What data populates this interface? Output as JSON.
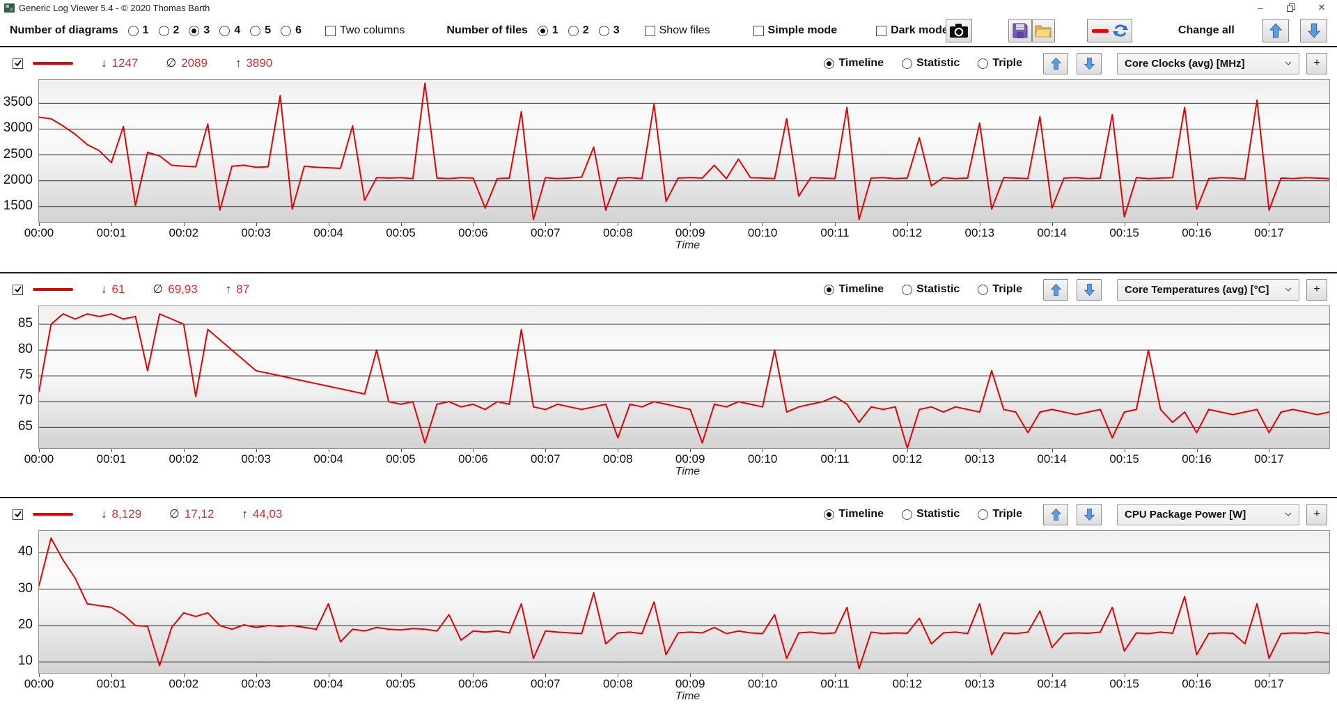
{
  "window": {
    "title": "Generic Log Viewer 5.4 - © 2020 Thomas Barth",
    "minimize": "–",
    "close": "✕"
  },
  "toolbar": {
    "diagrams_label": "Number of diagrams",
    "diagram_options": [
      "1",
      "2",
      "3",
      "4",
      "5",
      "6"
    ],
    "diagram_selected": "3",
    "two_columns_label": "Two columns",
    "files_label": "Number of files",
    "file_options": [
      "1",
      "2",
      "3"
    ],
    "file_selected": "1",
    "show_files_label": "Show files",
    "simple_mode_label": "Simple mode",
    "dark_mode_label": "Dark mode",
    "change_all_label": "Change all"
  },
  "symbols": {
    "min": "↓",
    "avg": "∅",
    "max": "↑"
  },
  "panels": [
    {
      "stats": {
        "min": "1247",
        "avg": "2089",
        "max": "3890"
      },
      "view_options": [
        "Timeline",
        "Statistic",
        "Triple"
      ],
      "view_selected": "Timeline",
      "metric": "Core Clocks (avg) [MHz]",
      "add_label": "+"
    },
    {
      "stats": {
        "min": "61",
        "avg": "69,93",
        "max": "87"
      },
      "view_options": [
        "Timeline",
        "Statistic",
        "Triple"
      ],
      "view_selected": "Timeline",
      "metric": "Core Temperatures (avg) [°C]",
      "add_label": "+"
    },
    {
      "stats": {
        "min": "8,129",
        "avg": "17,12",
        "max": "44,03"
      },
      "view_options": [
        "Timeline",
        "Statistic",
        "Triple"
      ],
      "view_selected": "Timeline",
      "metric": "CPU Package Power [W]",
      "add_label": "+"
    }
  ],
  "chart_data": [
    {
      "type": "line",
      "title": "Core Clocks (avg) [MHz]",
      "xlabel": "Time",
      "ylabel": "",
      "ylim": [
        1200,
        3950
      ],
      "y_ticks": [
        1500,
        2000,
        2500,
        3000,
        3500
      ],
      "x_ticks": [
        "00:00",
        "00:01",
        "00:02",
        "00:03",
        "00:04",
        "00:05",
        "00:06",
        "00:07",
        "00:08",
        "00:09",
        "00:10",
        "00:11",
        "00:12",
        "00:13",
        "00:14",
        "00:15",
        "00:16",
        "00:17"
      ],
      "sample_interval_seconds": 10,
      "grid": true,
      "stats": {
        "min": 1247,
        "avg": 2089,
        "max": 3890
      },
      "series": [
        {
          "color": "#e00404",
          "values": [
            3230,
            3200,
            3060,
            2900,
            2700,
            2580,
            2350,
            3050,
            1520,
            2550,
            2480,
            2300,
            2280,
            2270,
            3100,
            1430,
            2280,
            2300,
            2260,
            2270,
            3650,
            1450,
            2280,
            2260,
            2250,
            2240,
            3060,
            1620,
            2060,
            2050,
            2060,
            2040,
            3890,
            2050,
            2040,
            2060,
            2050,
            1470,
            2040,
            2050,
            3340,
            1250,
            2060,
            2040,
            2050,
            2070,
            2650,
            1430,
            2050,
            2060,
            2040,
            3480,
            1600,
            2050,
            2060,
            2050,
            2300,
            2040,
            2420,
            2060,
            2050,
            2040,
            3200,
            1700,
            2060,
            2050,
            2040,
            3420,
            1247,
            2050,
            2060,
            2040,
            2050,
            2830,
            1900,
            2060,
            2040,
            2050,
            3120,
            1450,
            2060,
            2050,
            2040,
            3240,
            1470,
            2050,
            2060,
            2040,
            2050,
            3280,
            1300,
            2060,
            2040,
            2050,
            2060,
            3420,
            1450,
            2040,
            2060,
            2050,
            2030,
            3560,
            1430,
            2050,
            2040,
            2060,
            2050,
            2040
          ]
        }
      ]
    },
    {
      "type": "line",
      "title": "Core Temperatures (avg) [°C]",
      "xlabel": "Time",
      "ylabel": "",
      "ylim": [
        61,
        88.5
      ],
      "y_ticks": [
        65,
        70,
        75,
        80,
        85
      ],
      "x_ticks": [
        "00:00",
        "00:01",
        "00:02",
        "00:03",
        "00:04",
        "00:05",
        "00:06",
        "00:07",
        "00:08",
        "00:09",
        "00:10",
        "00:11",
        "00:12",
        "00:13",
        "00:14",
        "00:15",
        "00:16",
        "00:17"
      ],
      "sample_interval_seconds": 10,
      "grid": true,
      "stats": {
        "min": 61,
        "avg": 69.93,
        "max": 87
      },
      "series": [
        {
          "color": "#e00404",
          "values": [
            72,
            85,
            87,
            86,
            87,
            86.5,
            87,
            86,
            86.5,
            76,
            87,
            86,
            85,
            71,
            84,
            82,
            80,
            78,
            76,
            75.5,
            75,
            74.5,
            74,
            73.5,
            73,
            72.5,
            72,
            71.5,
            80,
            70,
            69.5,
            70,
            62,
            69.5,
            70,
            69,
            69.5,
            68.5,
            70,
            69.5,
            84,
            69,
            68.5,
            69.5,
            69,
            68.5,
            69,
            69.5,
            63,
            69.5,
            69,
            70,
            69.5,
            69,
            68.5,
            62,
            69.5,
            69,
            70,
            69.5,
            69,
            80,
            68,
            69,
            69.5,
            70,
            71,
            69.5,
            66,
            69,
            68.5,
            69,
            61,
            68.5,
            69,
            68,
            69,
            68.5,
            68,
            76,
            68.5,
            68,
            64,
            68,
            68.5,
            68,
            67.5,
            68,
            68.5,
            63,
            68,
            68.5,
            80,
            68.5,
            66,
            68,
            64,
            68.5,
            68,
            67.5,
            68,
            68.5,
            64,
            68,
            68.5,
            68,
            67.5,
            68
          ]
        }
      ]
    },
    {
      "type": "line",
      "title": "CPU Package Power [W]",
      "xlabel": "Time",
      "ylabel": "",
      "ylim": [
        7,
        46
      ],
      "y_ticks": [
        10,
        20,
        30,
        40
      ],
      "x_ticks": [
        "00:00",
        "00:01",
        "00:02",
        "00:03",
        "00:04",
        "00:05",
        "00:06",
        "00:07",
        "00:08",
        "00:09",
        "00:10",
        "00:11",
        "00:12",
        "00:13",
        "00:14",
        "00:15",
        "00:16",
        "00:17"
      ],
      "sample_interval_seconds": 10,
      "grid": true,
      "stats": {
        "min": 8.129,
        "avg": 17.12,
        "max": 44.03
      },
      "series": [
        {
          "color": "#e00404",
          "values": [
            31,
            44.03,
            38,
            33,
            26,
            25.5,
            25,
            23,
            20,
            19.8,
            9,
            19.5,
            23.5,
            22.5,
            23.5,
            20,
            19,
            20.2,
            19.5,
            20,
            19.8,
            20,
            19.5,
            19,
            26,
            15.5,
            19,
            18.5,
            19.5,
            19,
            18.8,
            19.2,
            19,
            18.5,
            23,
            16,
            18.5,
            18.2,
            18.5,
            18,
            26,
            11,
            18.5,
            18.2,
            18,
            17.8,
            29,
            15,
            18,
            18.2,
            17.8,
            26.5,
            12,
            18,
            18.2,
            18,
            19.5,
            17.8,
            18.5,
            18,
            17.8,
            23,
            11,
            18,
            18.2,
            17.8,
            18,
            25,
            8.129,
            18.2,
            17.8,
            18,
            17.9,
            22,
            15,
            18,
            18.2,
            17.8,
            26,
            12,
            18,
            17.8,
            18.2,
            24,
            14,
            17.8,
            18,
            17.9,
            18.2,
            25,
            13,
            18,
            17.8,
            18.2,
            17.9,
            28,
            12,
            17.8,
            18,
            17.9,
            15,
            26,
            11,
            17.8,
            18,
            17.9,
            18.2,
            17.8
          ]
        }
      ]
    }
  ]
}
